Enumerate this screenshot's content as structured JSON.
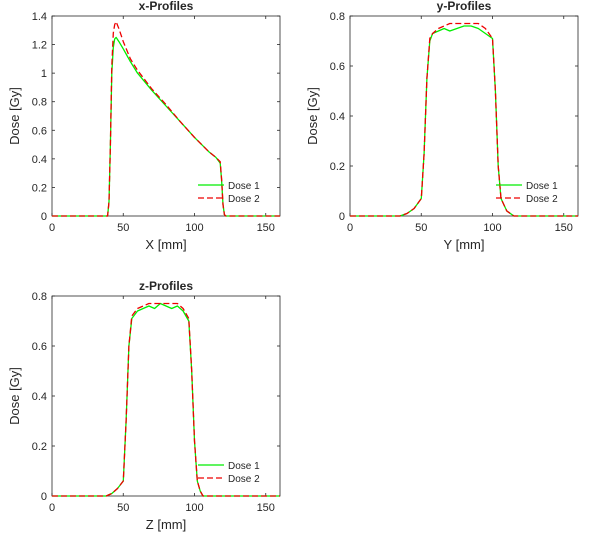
{
  "colors": {
    "dose1": "#00ee00",
    "dose2": "#ee0000",
    "axis": "#262626",
    "background": "#ffffff"
  },
  "chart_data": [
    {
      "type": "line",
      "title": "x-Profiles",
      "xlabel": "X [mm]",
      "ylabel": "Dose [Gy]",
      "xlim": [
        0,
        160
      ],
      "ylim": [
        0,
        1.4
      ],
      "xticks": [
        0,
        50,
        100,
        150
      ],
      "yticks": [
        0,
        0.2,
        0.4,
        0.6,
        0.8,
        1,
        1.2,
        1.4
      ],
      "legend_position": "bottom-right",
      "series": [
        {
          "name": "Dose 1",
          "style": "solid",
          "x": [
            0,
            39,
            40,
            41,
            42,
            43,
            44,
            45,
            47,
            50,
            55,
            60,
            70,
            80,
            90,
            100,
            110,
            115,
            118,
            119,
            120,
            121,
            122,
            160
          ],
          "y": [
            0,
            0,
            0.1,
            0.5,
            1.0,
            1.18,
            1.24,
            1.25,
            1.22,
            1.17,
            1.08,
            1.0,
            0.88,
            0.77,
            0.66,
            0.55,
            0.45,
            0.41,
            0.37,
            0.25,
            0.08,
            0.01,
            0,
            0
          ]
        },
        {
          "name": "Dose 2",
          "style": "dashed",
          "x": [
            0,
            39,
            40,
            41,
            42,
            43,
            44,
            45,
            47,
            50,
            55,
            60,
            70,
            80,
            90,
            100,
            110,
            115,
            118,
            119,
            120,
            121,
            122,
            160
          ],
          "y": [
            0,
            0,
            0.1,
            0.5,
            1.05,
            1.28,
            1.34,
            1.36,
            1.31,
            1.22,
            1.1,
            1.02,
            0.89,
            0.78,
            0.66,
            0.55,
            0.45,
            0.41,
            0.38,
            0.26,
            0.08,
            0.01,
            0,
            0
          ]
        }
      ]
    },
    {
      "type": "line",
      "title": "y-Profiles",
      "xlabel": "Y [mm]",
      "ylabel": "Dose [Gy]",
      "xlim": [
        0,
        160
      ],
      "ylim": [
        0,
        0.8
      ],
      "xticks": [
        0,
        50,
        100,
        150
      ],
      "yticks": [
        0,
        0.2,
        0.4,
        0.6,
        0.8
      ],
      "legend_position": "bottom-right",
      "series": [
        {
          "name": "Dose 1",
          "style": "solid",
          "x": [
            0,
            35,
            40,
            45,
            50,
            52,
            54,
            56,
            58,
            62,
            66,
            70,
            75,
            80,
            85,
            90,
            95,
            100,
            102,
            104,
            106,
            110,
            115,
            120,
            160
          ],
          "y": [
            0,
            0,
            0.01,
            0.03,
            0.07,
            0.25,
            0.55,
            0.7,
            0.73,
            0.74,
            0.75,
            0.74,
            0.75,
            0.76,
            0.76,
            0.75,
            0.73,
            0.71,
            0.5,
            0.2,
            0.07,
            0.02,
            0,
            0,
            0
          ]
        },
        {
          "name": "Dose 2",
          "style": "dashed",
          "x": [
            0,
            35,
            40,
            45,
            50,
            52,
            54,
            56,
            58,
            62,
            66,
            70,
            75,
            80,
            85,
            90,
            95,
            100,
            102,
            104,
            106,
            110,
            115,
            120,
            160
          ],
          "y": [
            0,
            0,
            0.01,
            0.03,
            0.07,
            0.25,
            0.55,
            0.71,
            0.73,
            0.75,
            0.76,
            0.77,
            0.77,
            0.77,
            0.77,
            0.77,
            0.75,
            0.71,
            0.5,
            0.2,
            0.07,
            0.02,
            0,
            0,
            0
          ]
        }
      ]
    },
    {
      "type": "line",
      "title": "z-Profiles",
      "xlabel": "Z [mm]",
      "ylabel": "Dose [Gy]",
      "xlim": [
        0,
        160
      ],
      "ylim": [
        0,
        0.8
      ],
      "xticks": [
        0,
        50,
        100,
        150
      ],
      "yticks": [
        0,
        0.2,
        0.4,
        0.6,
        0.8
      ],
      "legend_position": "bottom-right",
      "series": [
        {
          "name": "Dose 1",
          "style": "solid",
          "x": [
            0,
            38,
            42,
            46,
            50,
            52,
            54,
            56,
            60,
            64,
            68,
            72,
            76,
            80,
            84,
            88,
            92,
            96,
            98,
            100,
            102,
            104,
            106,
            110,
            160
          ],
          "y": [
            0,
            0,
            0.01,
            0.03,
            0.06,
            0.3,
            0.6,
            0.71,
            0.74,
            0.75,
            0.76,
            0.75,
            0.77,
            0.76,
            0.75,
            0.76,
            0.74,
            0.7,
            0.5,
            0.22,
            0.06,
            0.02,
            0,
            0,
            0
          ]
        },
        {
          "name": "Dose 2",
          "style": "dashed",
          "x": [
            0,
            38,
            42,
            46,
            50,
            52,
            54,
            56,
            60,
            64,
            68,
            72,
            76,
            80,
            84,
            88,
            92,
            96,
            98,
            100,
            102,
            104,
            106,
            110,
            160
          ],
          "y": [
            0,
            0,
            0.01,
            0.03,
            0.06,
            0.3,
            0.6,
            0.72,
            0.75,
            0.76,
            0.77,
            0.77,
            0.77,
            0.77,
            0.77,
            0.77,
            0.75,
            0.71,
            0.5,
            0.22,
            0.06,
            0.02,
            0,
            0,
            0
          ]
        }
      ]
    }
  ]
}
